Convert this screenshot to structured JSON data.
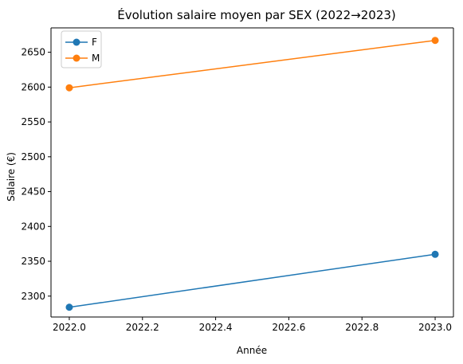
{
  "chart_data": {
    "type": "line",
    "title": "Évolution salaire moyen par SEX (2022→2023)",
    "xlabel": "Année",
    "ylabel": "Salaire (€)",
    "x": [
      2022,
      2023
    ],
    "xlim": [
      2021.95,
      2023.05
    ],
    "ylim": [
      2270,
      2685
    ],
    "xticks": [
      "2022.0",
      "2022.2",
      "2022.4",
      "2022.6",
      "2022.8",
      "2023.0"
    ],
    "xtick_values": [
      2022.0,
      2022.2,
      2022.4,
      2022.6,
      2022.8,
      2023.0
    ],
    "yticks": [
      "2300",
      "2350",
      "2400",
      "2450",
      "2500",
      "2550",
      "2600",
      "2650"
    ],
    "ytick_values": [
      2300,
      2350,
      2400,
      2450,
      2500,
      2550,
      2600,
      2650
    ],
    "series": [
      {
        "name": "F",
        "values": [
          2284,
          2360
        ],
        "color": "#1f77b4"
      },
      {
        "name": "M",
        "values": [
          2599,
          2667
        ],
        "color": "#ff7f0e"
      }
    ],
    "grid": false,
    "legend_position": "top-left"
  }
}
